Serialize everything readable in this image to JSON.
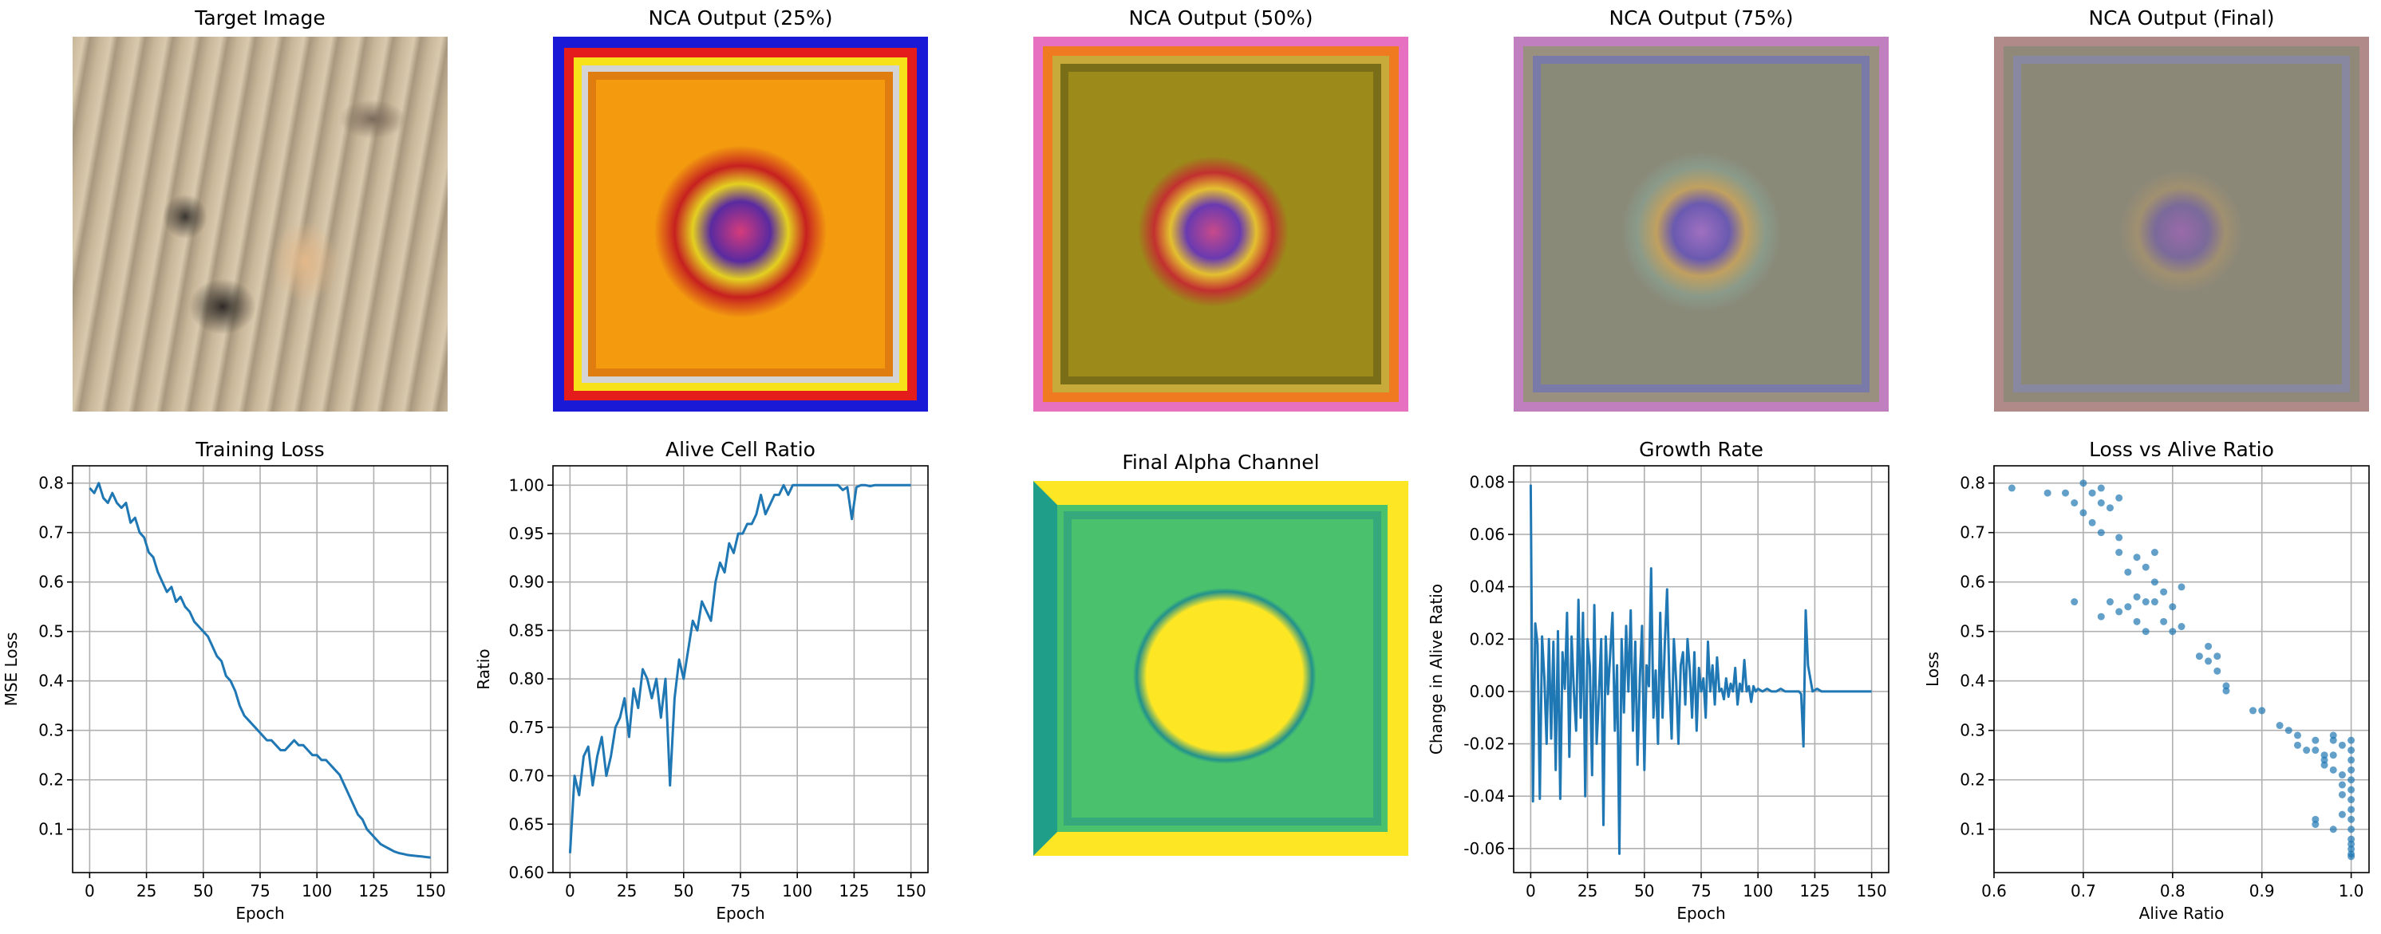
{
  "panels": {
    "target_title": "Target Image",
    "nca25_title": "NCA Output (25%)",
    "nca50_title": "NCA Output (50%)",
    "nca75_title": "NCA Output (75%)",
    "ncafinal_title": "NCA Output (Final)",
    "alpha_title": "Final Alpha Channel"
  },
  "colors": {
    "line": "#1f77b4",
    "grid": "#b0b0b0",
    "alpha_high": "#fde725",
    "alpha_mid": "#4ac16d",
    "alpha_low": "#1f9e89",
    "alpha_dark": "#21918c",
    "nca25_bg": "#f39a0f",
    "nca50_bg": "#9c8a1a",
    "nca75_bg": "#8a8a78",
    "ncafinal_bg": "#8c8878",
    "target_bg": "#c9b699"
  },
  "chart_data": [
    {
      "type": "line",
      "title": "Training Loss",
      "xlabel": "Epoch",
      "ylabel": "MSE Loss",
      "xlim": [
        -7.5,
        157.5
      ],
      "ylim": [
        0.0125,
        0.835
      ],
      "xticks": [
        0,
        25,
        50,
        75,
        100,
        125,
        150
      ],
      "yticks": [
        0.1,
        0.2,
        0.3,
        0.4,
        0.5,
        0.6,
        0.7,
        0.8
      ],
      "grid": true,
      "x": [
        0,
        2,
        4,
        6,
        8,
        10,
        12,
        14,
        16,
        18,
        20,
        22,
        24,
        26,
        28,
        30,
        32,
        34,
        36,
        38,
        40,
        42,
        44,
        46,
        48,
        50,
        52,
        54,
        56,
        58,
        60,
        62,
        64,
        66,
        68,
        70,
        72,
        74,
        76,
        78,
        80,
        82,
        84,
        86,
        88,
        90,
        92,
        94,
        96,
        98,
        100,
        102,
        104,
        106,
        108,
        110,
        112,
        114,
        116,
        118,
        120,
        122,
        124,
        126,
        128,
        130,
        132,
        134,
        136,
        138,
        140,
        142,
        144,
        146,
        148,
        150
      ],
      "y": [
        0.79,
        0.78,
        0.8,
        0.77,
        0.76,
        0.78,
        0.76,
        0.75,
        0.76,
        0.72,
        0.73,
        0.7,
        0.69,
        0.66,
        0.65,
        0.62,
        0.6,
        0.58,
        0.59,
        0.56,
        0.57,
        0.55,
        0.54,
        0.52,
        0.51,
        0.5,
        0.49,
        0.47,
        0.45,
        0.44,
        0.41,
        0.4,
        0.38,
        0.35,
        0.33,
        0.32,
        0.31,
        0.3,
        0.29,
        0.28,
        0.28,
        0.27,
        0.26,
        0.26,
        0.27,
        0.28,
        0.27,
        0.27,
        0.26,
        0.25,
        0.25,
        0.24,
        0.24,
        0.23,
        0.22,
        0.21,
        0.19,
        0.17,
        0.15,
        0.13,
        0.12,
        0.1,
        0.09,
        0.08,
        0.07,
        0.065,
        0.06,
        0.055,
        0.052,
        0.05,
        0.048,
        0.047,
        0.046,
        0.045,
        0.044,
        0.043
      ]
    },
    {
      "type": "line",
      "title": "Alive Cell Ratio",
      "xlabel": "Epoch",
      "ylabel": "Ratio",
      "xlim": [
        -7.5,
        157.5
      ],
      "ylim": [
        0.6,
        1.02
      ],
      "xticks": [
        0,
        25,
        50,
        75,
        100,
        125,
        150
      ],
      "yticks": [
        0.6,
        0.65,
        0.7,
        0.75,
        0.8,
        0.85,
        0.9,
        0.95,
        1.0
      ],
      "grid": true,
      "x": [
        0,
        2,
        4,
        6,
        8,
        10,
        12,
        14,
        16,
        18,
        20,
        22,
        24,
        26,
        28,
        30,
        32,
        34,
        36,
        38,
        40,
        42,
        44,
        46,
        48,
        50,
        52,
        54,
        56,
        58,
        60,
        62,
        64,
        66,
        68,
        70,
        72,
        74,
        76,
        78,
        80,
        82,
        84,
        86,
        88,
        90,
        92,
        94,
        96,
        98,
        100,
        102,
        104,
        106,
        108,
        110,
        112,
        114,
        116,
        118,
        120,
        122,
        124,
        126,
        128,
        130,
        132,
        134,
        136,
        138,
        140,
        142,
        144,
        146,
        148,
        150
      ],
      "y": [
        0.62,
        0.7,
        0.68,
        0.72,
        0.73,
        0.69,
        0.72,
        0.74,
        0.7,
        0.72,
        0.75,
        0.76,
        0.78,
        0.74,
        0.79,
        0.77,
        0.81,
        0.8,
        0.78,
        0.8,
        0.76,
        0.8,
        0.69,
        0.78,
        0.82,
        0.8,
        0.83,
        0.86,
        0.85,
        0.88,
        0.87,
        0.86,
        0.9,
        0.92,
        0.91,
        0.94,
        0.93,
        0.95,
        0.95,
        0.96,
        0.96,
        0.97,
        0.99,
        0.97,
        0.98,
        0.99,
        0.99,
        1.0,
        0.99,
        1.0,
        1.0,
        1.0,
        1.0,
        1.0,
        1.0,
        1.0,
        1.0,
        1.0,
        1.0,
        1.0,
        0.995,
        0.998,
        0.965,
        0.998,
        1.0,
        1.0,
        0.999,
        1.0,
        1.0,
        1.0,
        1.0,
        1.0,
        1.0,
        1.0,
        1.0,
        1.0
      ]
    },
    {
      "type": "line",
      "title": "Growth Rate",
      "xlabel": "Epoch",
      "ylabel": "Change in Alive Ratio",
      "xlim": [
        -7.5,
        157.5
      ],
      "ylim": [
        -0.0692,
        0.0862
      ],
      "xticks": [
        0,
        25,
        50,
        75,
        100,
        125,
        150
      ],
      "yticks": [
        -0.06,
        -0.04,
        -0.02,
        0.0,
        0.02,
        0.04,
        0.06,
        0.08
      ],
      "grid": true,
      "x": [
        0,
        1,
        2,
        3,
        4,
        5,
        6,
        7,
        8,
        9,
        10,
        11,
        12,
        13,
        14,
        15,
        16,
        17,
        18,
        19,
        20,
        21,
        22,
        23,
        24,
        25,
        26,
        27,
        28,
        29,
        30,
        31,
        32,
        33,
        34,
        35,
        36,
        37,
        38,
        39,
        40,
        41,
        42,
        43,
        44,
        45,
        46,
        47,
        48,
        49,
        50,
        51,
        52,
        53,
        54,
        55,
        56,
        57,
        58,
        59,
        60,
        61,
        62,
        63,
        64,
        65,
        66,
        67,
        68,
        69,
        70,
        71,
        72,
        73,
        74,
        75,
        76,
        77,
        78,
        79,
        80,
        81,
        82,
        83,
        84,
        85,
        86,
        87,
        88,
        89,
        90,
        91,
        92,
        93,
        94,
        95,
        96,
        97,
        98,
        99,
        100,
        102,
        104,
        106,
        108,
        110,
        112,
        114,
        116,
        118,
        119,
        120,
        121,
        122,
        124,
        126,
        128,
        130,
        135,
        140,
        145,
        150
      ],
      "y": [
        0.079,
        -0.042,
        0.026,
        0.018,
        -0.041,
        0.021,
        0.005,
        -0.02,
        0.02,
        -0.018,
        0.019,
        -0.03,
        0.023,
        -0.041,
        0.015,
        0.001,
        0.03,
        -0.025,
        0.021,
        0.0,
        -0.015,
        0.035,
        -0.01,
        0.03,
        -0.04,
        0.02,
        0.01,
        -0.032,
        0.033,
        -0.02,
        -0.002,
        0.02,
        -0.051,
        0.021,
        -0.001,
        0.015,
        0.03,
        -0.015,
        0.01,
        -0.062,
        0.02,
        -0.008,
        0.025,
        0.0,
        0.031,
        -0.015,
        0.019,
        -0.028,
        0.005,
        0.025,
        -0.03,
        0.01,
        0.002,
        0.047,
        -0.01,
        0.008,
        -0.02,
        0.03,
        -0.01,
        0.018,
        0.039,
        0.005,
        -0.018,
        0.02,
        0.004,
        -0.02,
        0.01,
        0.015,
        -0.005,
        0.02,
        0.008,
        -0.01,
        0.015,
        -0.015,
        0.009,
        0.0,
        0.005,
        -0.01,
        0.019,
        0.0,
        0.01,
        -0.005,
        0.013,
        0.0,
        0.001,
        -0.003,
        0.005,
        -0.002,
        0.003,
        0.0,
        0.009,
        -0.005,
        0.003,
        0.0,
        0.012,
        0.0,
        0.002,
        -0.004,
        0.002,
        0.0,
        0.001,
        0.0,
        0.001,
        0.0,
        0.0,
        0.001,
        0.0,
        0.0,
        0.0,
        0.0,
        -0.001,
        -0.021,
        0.031,
        0.01,
        0.0,
        0.001,
        0.0,
        0.0,
        0.0,
        0.0,
        0.0,
        0.0
      ]
    },
    {
      "type": "scatter",
      "title": "Loss vs Alive Ratio",
      "xlabel": "Alive Ratio",
      "ylabel": "Loss",
      "xlim": [
        0.6,
        1.02
      ],
      "ylim": [
        0.0125,
        0.835
      ],
      "xticks": [
        0.6,
        0.7,
        0.8,
        0.9,
        1.0
      ],
      "yticks": [
        0.1,
        0.2,
        0.3,
        0.4,
        0.5,
        0.6,
        0.7,
        0.8
      ],
      "grid": true,
      "points": [
        [
          0.62,
          0.79
        ],
        [
          0.66,
          0.78
        ],
        [
          0.68,
          0.78
        ],
        [
          0.7,
          0.8
        ],
        [
          0.69,
          0.76
        ],
        [
          0.71,
          0.78
        ],
        [
          0.72,
          0.79
        ],
        [
          0.72,
          0.76
        ],
        [
          0.73,
          0.75
        ],
        [
          0.74,
          0.77
        ],
        [
          0.7,
          0.74
        ],
        [
          0.71,
          0.72
        ],
        [
          0.72,
          0.7
        ],
        [
          0.74,
          0.69
        ],
        [
          0.74,
          0.66
        ],
        [
          0.76,
          0.65
        ],
        [
          0.75,
          0.62
        ],
        [
          0.77,
          0.63
        ],
        [
          0.78,
          0.66
        ],
        [
          0.78,
          0.6
        ],
        [
          0.79,
          0.58
        ],
        [
          0.78,
          0.56
        ],
        [
          0.77,
          0.56
        ],
        [
          0.76,
          0.57
        ],
        [
          0.75,
          0.55
        ],
        [
          0.74,
          0.54
        ],
        [
          0.73,
          0.56
        ],
        [
          0.72,
          0.53
        ],
        [
          0.69,
          0.56
        ],
        [
          0.76,
          0.52
        ],
        [
          0.77,
          0.5
        ],
        [
          0.79,
          0.52
        ],
        [
          0.8,
          0.5
        ],
        [
          0.81,
          0.51
        ],
        [
          0.81,
          0.59
        ],
        [
          0.8,
          0.55
        ],
        [
          0.83,
          0.45
        ],
        [
          0.84,
          0.47
        ],
        [
          0.84,
          0.44
        ],
        [
          0.85,
          0.45
        ],
        [
          0.85,
          0.42
        ],
        [
          0.86,
          0.38
        ],
        [
          0.86,
          0.39
        ],
        [
          0.89,
          0.34
        ],
        [
          0.9,
          0.34
        ],
        [
          0.92,
          0.31
        ],
        [
          0.93,
          0.3
        ],
        [
          0.94,
          0.29
        ],
        [
          0.94,
          0.27
        ],
        [
          0.95,
          0.26
        ],
        [
          0.96,
          0.28
        ],
        [
          0.96,
          0.26
        ],
        [
          0.97,
          0.25
        ],
        [
          0.97,
          0.24
        ],
        [
          0.97,
          0.23
        ],
        [
          0.98,
          0.29
        ],
        [
          0.98,
          0.28
        ],
        [
          0.98,
          0.25
        ],
        [
          0.98,
          0.22
        ],
        [
          0.99,
          0.27
        ],
        [
          0.99,
          0.21
        ],
        [
          0.99,
          0.19
        ],
        [
          0.99,
          0.17
        ],
        [
          1.0,
          0.28
        ],
        [
          1.0,
          0.26
        ],
        [
          1.0,
          0.24
        ],
        [
          1.0,
          0.22
        ],
        [
          1.0,
          0.2
        ],
        [
          1.0,
          0.18
        ],
        [
          1.0,
          0.16
        ],
        [
          1.0,
          0.14
        ],
        [
          1.0,
          0.12
        ],
        [
          1.0,
          0.1
        ],
        [
          1.0,
          0.08
        ],
        [
          1.0,
          0.07
        ],
        [
          1.0,
          0.06
        ],
        [
          1.0,
          0.05
        ],
        [
          1.0,
          0.045
        ],
        [
          0.99,
          0.13
        ],
        [
          0.96,
          0.12
        ],
        [
          0.96,
          0.11
        ],
        [
          0.98,
          0.1
        ]
      ]
    }
  ]
}
